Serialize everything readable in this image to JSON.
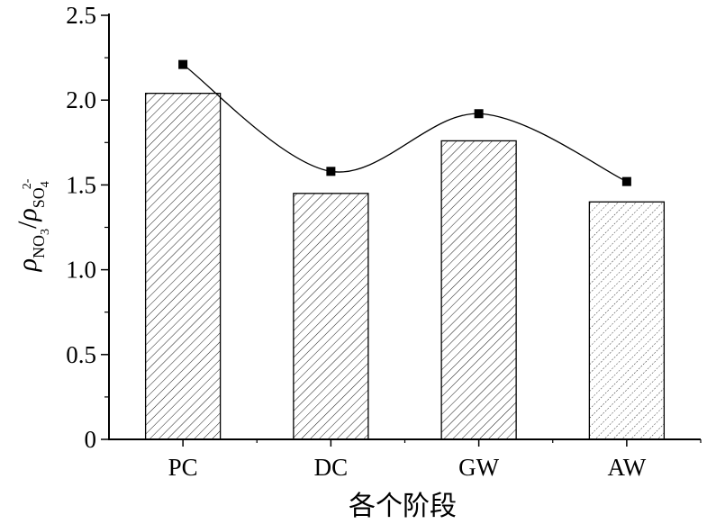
{
  "chart_data": {
    "type": "bar",
    "categories": [
      "PC",
      "DC",
      "GW",
      "AW"
    ],
    "values": [
      2.04,
      1.45,
      1.76,
      1.4
    ],
    "series": [
      {
        "type": "bar",
        "values": [
          2.04,
          1.45,
          1.76,
          1.4
        ]
      },
      {
        "type": "line",
        "smooth": true,
        "values": [
          2.21,
          1.58,
          1.92,
          1.52
        ]
      }
    ],
    "xlabel": "各个阶段",
    "ylabel": {
      "rho": "ρ",
      "num_sub": "NO",
      "num_sub2": "3",
      "slash": "/",
      "den_sub": "SO",
      "den_sub2": "4",
      "den_sup": "2-"
    },
    "ylim": [
      0,
      2.5
    ],
    "yticks": [
      "0",
      "0.5",
      "1.0",
      "1.5",
      "2.0",
      "2.5"
    ],
    "ytick_values": [
      0,
      0.5,
      1.0,
      1.5,
      2.0,
      2.5
    ],
    "grid": false,
    "legend": "none",
    "colors": {
      "axis": "#000000",
      "bar_fill": "#ffffff",
      "hatch": "#000000",
      "marker": "#000000",
      "line": "#000000"
    }
  }
}
